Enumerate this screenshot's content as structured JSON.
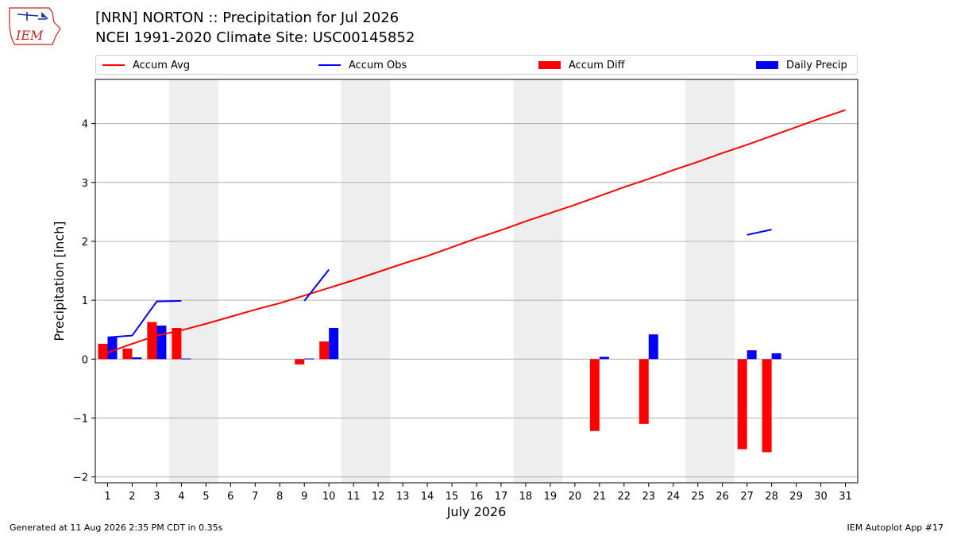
{
  "header": {
    "logo_text": "IEM",
    "title_line1": "[NRN] NORTON :: Precipitation for Jul 2026",
    "title_line2": "NCEI 1991-2020 Climate Site: USC00145852"
  },
  "footer": {
    "left": "Generated at 11 Aug 2026 2:35 PM CDT in 0.35s",
    "right": "IEM Autoplot App #17"
  },
  "colors": {
    "accum_avg": "#ff0000",
    "accum_obs": "#0000ff",
    "accum_diff": "#ff0000",
    "daily_precip": "#0000ff",
    "weekend_shade": "#eeeeee",
    "grid": "#b0b0b0"
  },
  "chart_data": {
    "type": "bar",
    "title": "[NRN] NORTON :: Precipitation for Jul 2026",
    "subtitle": "NCEI 1991-2020 Climate Site: USC00145852",
    "xlabel": "July 2026",
    "ylabel": "Precipitation [inch]",
    "x_ticks": [
      "1",
      "2",
      "3",
      "4",
      "5",
      "6",
      "7",
      "8",
      "9",
      "10",
      "11",
      "12",
      "13",
      "14",
      "15",
      "16",
      "17",
      "18",
      "19",
      "20",
      "21",
      "22",
      "23",
      "24",
      "25",
      "26",
      "27",
      "28",
      "29",
      "30",
      "31"
    ],
    "y_ticks": [
      "−2",
      "−1",
      "0",
      "1",
      "2",
      "3",
      "4"
    ],
    "xlim": [
      0.5,
      31.5
    ],
    "ylim": [
      -2.1,
      4.75
    ],
    "grid": "horizontal",
    "legend_position": "top",
    "shaded_days": [
      [
        4,
        5
      ],
      [
        11,
        12
      ],
      [
        18,
        19
      ],
      [
        25,
        26
      ]
    ],
    "legend": [
      "Accum Avg",
      "Accum Obs",
      "Accum Diff",
      "Daily Precip"
    ],
    "series": [
      {
        "name": "Accum Avg",
        "kind": "line",
        "days": [
          1,
          2,
          3,
          4,
          5,
          6,
          7,
          8,
          9,
          10,
          11,
          12,
          13,
          14,
          15,
          16,
          17,
          18,
          19,
          20,
          21,
          22,
          23,
          24,
          25,
          26,
          27,
          28,
          29,
          30,
          31
        ],
        "values": [
          0.11,
          0.26,
          0.4,
          0.49,
          0.6,
          0.72,
          0.84,
          0.95,
          1.08,
          1.21,
          1.34,
          1.48,
          1.62,
          1.75,
          1.9,
          2.05,
          2.19,
          2.34,
          2.48,
          2.62,
          2.77,
          2.92,
          3.06,
          3.21,
          3.35,
          3.5,
          3.64,
          3.79,
          3.94,
          4.09,
          4.23
        ]
      },
      {
        "name": "Accum Obs",
        "kind": "line",
        "segments": [
          {
            "days": [
              1,
              2,
              3,
              4
            ],
            "values": [
              0.37,
              0.4,
              0.98,
              0.99
            ]
          },
          {
            "days": [
              9,
              10
            ],
            "values": [
              0.99,
              1.52
            ]
          },
          {
            "days": [
              27,
              28
            ],
            "values": [
              2.11,
              2.2
            ]
          }
        ]
      },
      {
        "name": "Accum Diff",
        "kind": "bar",
        "days": [
          1,
          2,
          3,
          4,
          9,
          10,
          21,
          23,
          27,
          28
        ],
        "values": [
          0.26,
          0.18,
          0.63,
          0.53,
          -0.09,
          0.3,
          -1.22,
          -1.1,
          -1.53,
          -1.58
        ]
      },
      {
        "name": "Daily Precip",
        "kind": "bar",
        "days": [
          1,
          2,
          3,
          4,
          9,
          10,
          21,
          23,
          27,
          28
        ],
        "values": [
          0.37,
          0.03,
          0.57,
          0.01,
          0.01,
          0.53,
          0.04,
          0.42,
          0.15,
          0.1
        ]
      }
    ]
  }
}
